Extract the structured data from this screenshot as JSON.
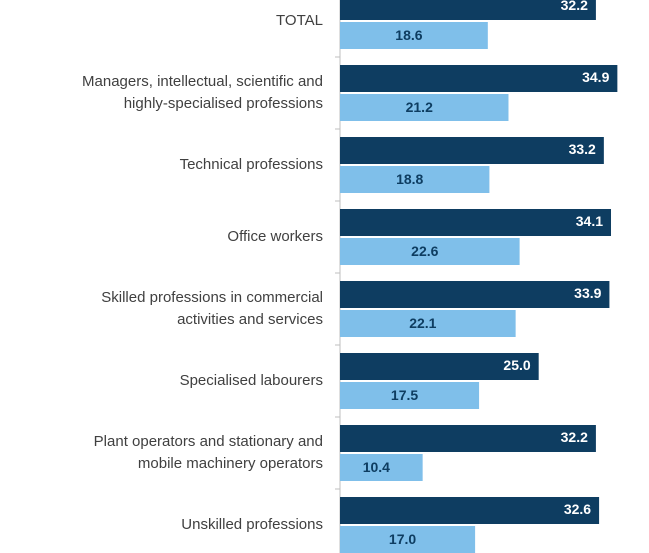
{
  "chart_data": {
    "type": "bar",
    "orientation": "horizontal",
    "categories": [
      [
        "TOTAL"
      ],
      [
        "Managers, intellectual, scientific and",
        "highly-specialised professions"
      ],
      [
        "Technical professions"
      ],
      [
        "Office workers"
      ],
      [
        "Skilled professions in commercial",
        "activities and services"
      ],
      [
        "Specialised labourers"
      ],
      [
        "Plant operators and stationary and",
        "mobile machinery operators"
      ],
      [
        "Unskilled professions"
      ]
    ],
    "series": [
      {
        "color": "#0e3d61",
        "values": [
          32.2,
          34.9,
          33.2,
          34.1,
          33.9,
          25.0,
          32.2,
          32.6
        ],
        "value_labels": [
          "32.2",
          "34.9",
          "33.2",
          "34.1",
          "33.9",
          "25.0",
          "32.2",
          "32.6"
        ]
      },
      {
        "color": "#7fbfea",
        "values": [
          18.6,
          21.2,
          18.8,
          22.6,
          22.1,
          17.5,
          10.4,
          17.0
        ],
        "value_labels": [
          "18.6",
          "21.2",
          "18.8",
          "22.6",
          "22.1",
          "17.5",
          "10.4",
          "17.0"
        ]
      }
    ],
    "xlim": [
      0,
      38
    ]
  }
}
